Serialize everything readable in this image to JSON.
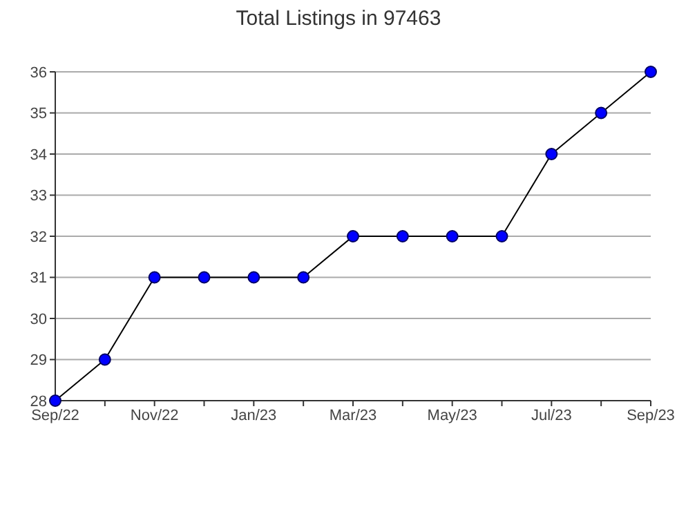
{
  "chart_data": {
    "type": "line",
    "title": "Total Listings in 97463",
    "categories": [
      "Sep/22",
      null,
      "Nov/22",
      null,
      "Jan/23",
      null,
      "Mar/23",
      null,
      "May/23",
      null,
      "Jul/23",
      null,
      "Sep/23"
    ],
    "series": [
      {
        "color": "#0000ff",
        "values": [
          28,
          29,
          31,
          31,
          31,
          31,
          32,
          32,
          32,
          32,
          34,
          35,
          36
        ]
      }
    ],
    "ylim": [
      28,
      36
    ],
    "yticks": [
      28,
      29,
      30,
      31,
      32,
      33,
      34,
      35,
      36
    ],
    "grid": "y",
    "marker": "circle",
    "line_style": "solid"
  }
}
